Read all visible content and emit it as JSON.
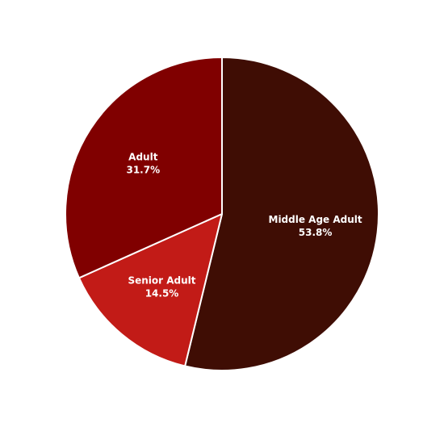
{
  "chart_data": {
    "type": "pie",
    "title": "",
    "slices": [
      {
        "label": "Middle Age Adult",
        "value": 53.8,
        "value_label": "53.8%",
        "color": "#3f0d04"
      },
      {
        "label": "Senior Adult",
        "value": 14.5,
        "value_label": "14.5%",
        "color": "#c21b17"
      },
      {
        "label": "Adult",
        "value": 31.7,
        "value_label": "31.7%",
        "color": "#800000"
      }
    ],
    "start_angle": "12 o'clock",
    "direction": "clockwise",
    "slice_border_color": "#ffffff",
    "legend": "none"
  }
}
